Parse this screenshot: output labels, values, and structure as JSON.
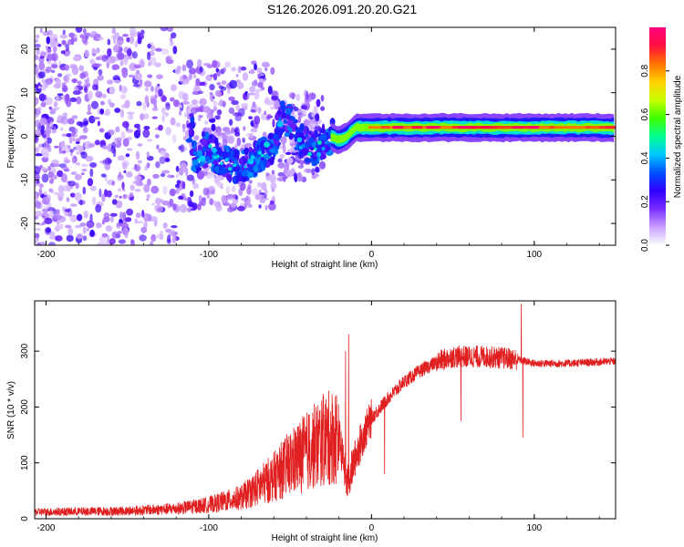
{
  "figure_title": "S126.2026.091.20.20.G21",
  "chart_data": [
    {
      "type": "heatmap",
      "xlabel": "Height of straight line (km)",
      "ylabel": "Frequency (Hz)",
      "xlim": [
        -207,
        150
      ],
      "ylim": [
        -25,
        25
      ],
      "xticks": [
        -200,
        -100,
        0,
        100
      ],
      "xtick_labels": [
        "-200",
        "-100",
        "0",
        "100"
      ],
      "yticks": [
        -20,
        -10,
        0,
        10,
        20
      ],
      "ytick_labels": [
        "-20",
        "-10",
        "0",
        "10",
        "20"
      ],
      "colorbar": {
        "label": "Normalized spectral amplitude",
        "range": [
          0,
          1
        ],
        "ticks": [
          0.0,
          0.2,
          0.4,
          0.6,
          0.8
        ],
        "tick_labels": [
          "0.0",
          "0.2",
          "0.4",
          "0.6",
          "0.8"
        ],
        "colors": [
          "#ffffff",
          "#c8a0ff",
          "#7a2cff",
          "#3000ff",
          "#0050ff",
          "#00c8ff",
          "#00ff90",
          "#40ff00",
          "#c8ff00",
          "#ffd000",
          "#ff7000",
          "#ff1040",
          "#ff0080"
        ]
      },
      "description_of_data": {
        "noise_region_km": [
          -207,
          -30
        ],
        "transition_track": [
          [
            -110,
            -5
          ],
          [
            -100,
            -3
          ],
          [
            -90,
            -6
          ],
          [
            -80,
            -7
          ],
          [
            -70,
            -5
          ],
          [
            -60,
            -2
          ],
          [
            -55,
            5
          ],
          [
            -50,
            3
          ],
          [
            -45,
            0
          ],
          [
            -40,
            -2
          ],
          [
            -35,
            -3
          ],
          [
            -25,
            0
          ],
          [
            -20,
            -1
          ],
          [
            -15,
            0
          ],
          [
            -10,
            2
          ],
          [
            0,
            2
          ],
          [
            150,
            2
          ]
        ],
        "stable_tone_hz": 2,
        "stable_region_km": [
          -25,
          150
        ]
      }
    },
    {
      "type": "line",
      "xlabel": "Height of straight line (km)",
      "ylabel": "SNR (10 * v/v)",
      "xlim": [
        -207,
        150
      ],
      "ylim": [
        0,
        390
      ],
      "xticks": [
        -200,
        -100,
        0,
        100
      ],
      "xtick_labels": [
        "-200",
        "-100",
        "0",
        "100"
      ],
      "yticks": [
        0,
        100,
        200,
        300
      ],
      "ytick_labels": [
        "0",
        "100",
        "200",
        "300"
      ],
      "color": "#e02020",
      "envelope": {
        "x": [
          -207,
          -150,
          -120,
          -100,
          -80,
          -60,
          -50,
          -40,
          -30,
          -20,
          -15,
          -10,
          -5,
          0,
          10,
          20,
          30,
          40,
          50,
          60,
          70,
          80,
          90,
          100,
          120,
          150
        ],
        "y": [
          12,
          14,
          18,
          25,
          38,
          75,
          100,
          120,
          140,
          150,
          60,
          110,
          150,
          180,
          215,
          245,
          265,
          280,
          290,
          290,
          290,
          288,
          285,
          278,
          278,
          282
        ]
      },
      "spikes": [
        {
          "x": -14,
          "y": 330
        },
        {
          "x": -16,
          "y": 300
        },
        {
          "x": -30,
          "y": 190
        },
        {
          "x": 8,
          "y": 80
        },
        {
          "x": 55,
          "y": 175
        },
        {
          "x": 92,
          "y": 385
        },
        {
          "x": 93,
          "y": 145
        }
      ]
    }
  ]
}
